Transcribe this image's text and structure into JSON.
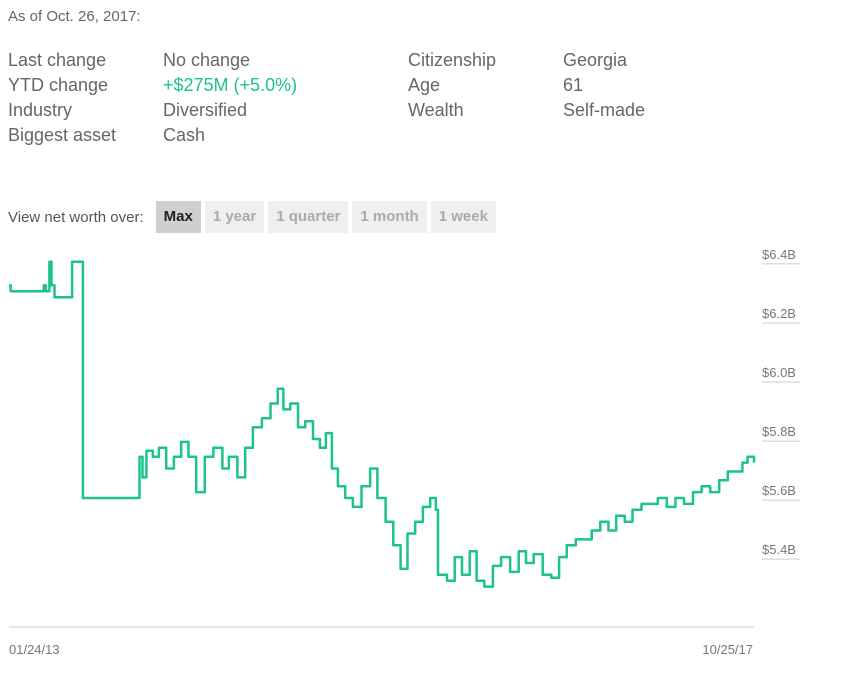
{
  "header": {
    "as_of": "As of Oct. 26, 2017:"
  },
  "facts": {
    "left": [
      {
        "label": "Last change",
        "value": "No change"
      },
      {
        "label": "YTD change",
        "value": "+$275M (+5.0%)",
        "highlight": true
      },
      {
        "label": "Industry",
        "value": "Diversified"
      },
      {
        "label": "Biggest asset",
        "value": "Cash"
      }
    ],
    "right": [
      {
        "label": "Citizenship",
        "value": "Georgia"
      },
      {
        "label": "Age",
        "value": "61"
      },
      {
        "label": "Wealth",
        "value": "Self-made"
      }
    ]
  },
  "range_selector": {
    "label": "View net worth over:",
    "options": [
      "Max",
      "1 year",
      "1 quarter",
      "1 month",
      "1 week"
    ],
    "active": "Max"
  },
  "colors": {
    "line": "#1cc38a",
    "highlight": "#1cc38a",
    "axis": "#cccccc",
    "tick_text": "#777777"
  },
  "chart_data": {
    "type": "line",
    "title": "",
    "xlabel": "",
    "ylabel": "",
    "x_tick_labels": [
      "01/24/13",
      "10/25/17"
    ],
    "y_tick_labels": [
      "$6.4B",
      "$6.2B",
      "$6.0B",
      "$5.8B",
      "$5.6B",
      "$5.4B"
    ],
    "y_ticks": [
      6.4,
      6.2,
      6.0,
      5.8,
      5.6,
      5.4
    ],
    "ylim": [
      5.15,
      6.42
    ],
    "xlim": [
      "2013-01-24",
      "2017-10-25"
    ],
    "grid": false,
    "series": [
      {
        "values": [
          [
            "2013-01-24",
            6.3
          ],
          [
            "2013-01-28",
            6.28
          ],
          [
            "2013-04-10",
            6.28
          ],
          [
            "2013-04-15",
            6.3
          ],
          [
            "2013-04-20",
            6.28
          ],
          [
            "2013-04-28",
            6.38
          ],
          [
            "2013-05-03",
            6.3
          ],
          [
            "2013-05-10",
            6.26
          ],
          [
            "2013-06-15",
            6.26
          ],
          [
            "2013-06-20",
            6.38
          ],
          [
            "2013-07-12",
            6.38
          ],
          [
            "2013-07-15",
            5.58
          ],
          [
            "2013-11-20",
            5.58
          ],
          [
            "2013-11-24",
            5.72
          ],
          [
            "2013-12-01",
            5.65
          ],
          [
            "2013-12-10",
            5.74
          ],
          [
            "2013-12-25",
            5.72
          ],
          [
            "2014-01-08",
            5.75
          ],
          [
            "2014-01-25",
            5.68
          ],
          [
            "2014-02-12",
            5.72
          ],
          [
            "2014-03-01",
            5.77
          ],
          [
            "2014-03-18",
            5.72
          ],
          [
            "2014-04-05",
            5.6
          ],
          [
            "2014-04-25",
            5.72
          ],
          [
            "2014-05-15",
            5.75
          ],
          [
            "2014-06-05",
            5.68
          ],
          [
            "2014-06-20",
            5.72
          ],
          [
            "2014-07-10",
            5.65
          ],
          [
            "2014-07-28",
            5.75
          ],
          [
            "2014-08-15",
            5.82
          ],
          [
            "2014-09-05",
            5.85
          ],
          [
            "2014-09-25",
            5.9
          ],
          [
            "2014-10-12",
            5.95
          ],
          [
            "2014-10-25",
            5.88
          ],
          [
            "2014-11-10",
            5.9
          ],
          [
            "2014-11-28",
            5.82
          ],
          [
            "2014-12-15",
            5.84
          ],
          [
            "2015-01-02",
            5.78
          ],
          [
            "2015-01-18",
            5.75
          ],
          [
            "2015-02-01",
            5.8
          ],
          [
            "2015-02-15",
            5.68
          ],
          [
            "2015-03-01",
            5.62
          ],
          [
            "2015-03-18",
            5.58
          ],
          [
            "2015-04-05",
            5.55
          ],
          [
            "2015-04-25",
            5.62
          ],
          [
            "2015-05-15",
            5.68
          ],
          [
            "2015-06-01",
            5.58
          ],
          [
            "2015-06-20",
            5.5
          ],
          [
            "2015-07-08",
            5.42
          ],
          [
            "2015-07-25",
            5.34
          ],
          [
            "2015-08-10",
            5.46
          ],
          [
            "2015-08-28",
            5.5
          ],
          [
            "2015-09-15",
            5.55
          ],
          [
            "2015-10-02",
            5.58
          ],
          [
            "2015-10-15",
            5.54
          ],
          [
            "2015-10-20",
            5.32
          ],
          [
            "2015-11-10",
            5.3
          ],
          [
            "2015-11-28",
            5.38
          ],
          [
            "2015-12-15",
            5.32
          ],
          [
            "2016-01-02",
            5.4
          ],
          [
            "2016-01-18",
            5.3
          ],
          [
            "2016-02-05",
            5.28
          ],
          [
            "2016-02-25",
            5.35
          ],
          [
            "2016-03-15",
            5.38
          ],
          [
            "2016-04-05",
            5.33
          ],
          [
            "2016-04-25",
            5.4
          ],
          [
            "2016-05-12",
            5.36
          ],
          [
            "2016-05-30",
            5.39
          ],
          [
            "2016-06-20",
            5.32
          ],
          [
            "2016-07-10",
            5.31
          ],
          [
            "2016-07-28",
            5.38
          ],
          [
            "2016-08-15",
            5.42
          ],
          [
            "2016-09-05",
            5.44
          ],
          [
            "2016-09-25",
            5.44
          ],
          [
            "2016-10-12",
            5.47
          ],
          [
            "2016-11-01",
            5.5
          ],
          [
            "2016-11-20",
            5.47
          ],
          [
            "2016-12-08",
            5.52
          ],
          [
            "2016-12-28",
            5.5
          ],
          [
            "2017-01-15",
            5.54
          ],
          [
            "2017-02-05",
            5.56
          ],
          [
            "2017-02-25",
            5.56
          ],
          [
            "2017-03-15",
            5.58
          ],
          [
            "2017-04-05",
            5.55
          ],
          [
            "2017-04-25",
            5.58
          ],
          [
            "2017-05-15",
            5.56
          ],
          [
            "2017-06-05",
            5.6
          ],
          [
            "2017-06-25",
            5.62
          ],
          [
            "2017-07-15",
            5.6
          ],
          [
            "2017-08-05",
            5.64
          ],
          [
            "2017-08-25",
            5.67
          ],
          [
            "2017-09-12",
            5.67
          ],
          [
            "2017-09-28",
            5.7
          ],
          [
            "2017-10-10",
            5.72
          ],
          [
            "2017-10-25",
            5.7
          ]
        ]
      }
    ]
  }
}
